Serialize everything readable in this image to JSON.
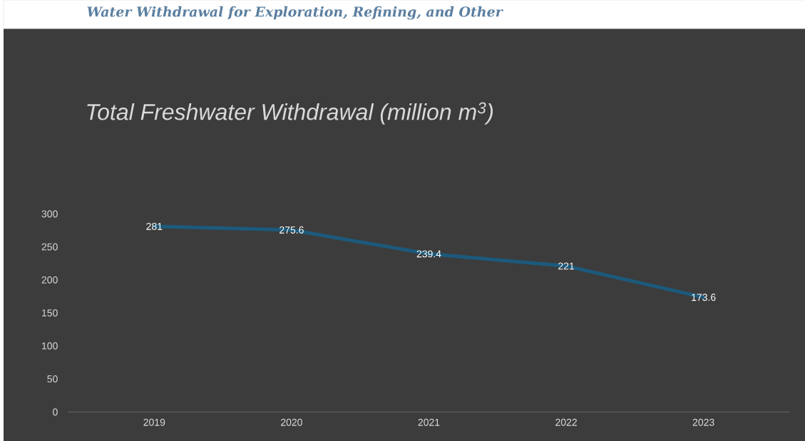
{
  "chart_data": {
    "type": "line",
    "title": "Water Withdrawal for Exploration, Refining, and Other",
    "subtitle": "Total Freshwater Withdrawal (million m$^{3}$)",
    "categories": [
      "2019",
      "2020",
      "2021",
      "2022",
      "2023"
    ],
    "values": [
      281,
      275.6,
      239.4,
      221,
      173.6
    ],
    "color": "#1c5a7c",
    "line_style": "solid",
    "data_labels": true,
    "ylim": [
      0,
      300
    ],
    "yticks": [
      0,
      50,
      100,
      150,
      200,
      250,
      300
    ]
  }
}
